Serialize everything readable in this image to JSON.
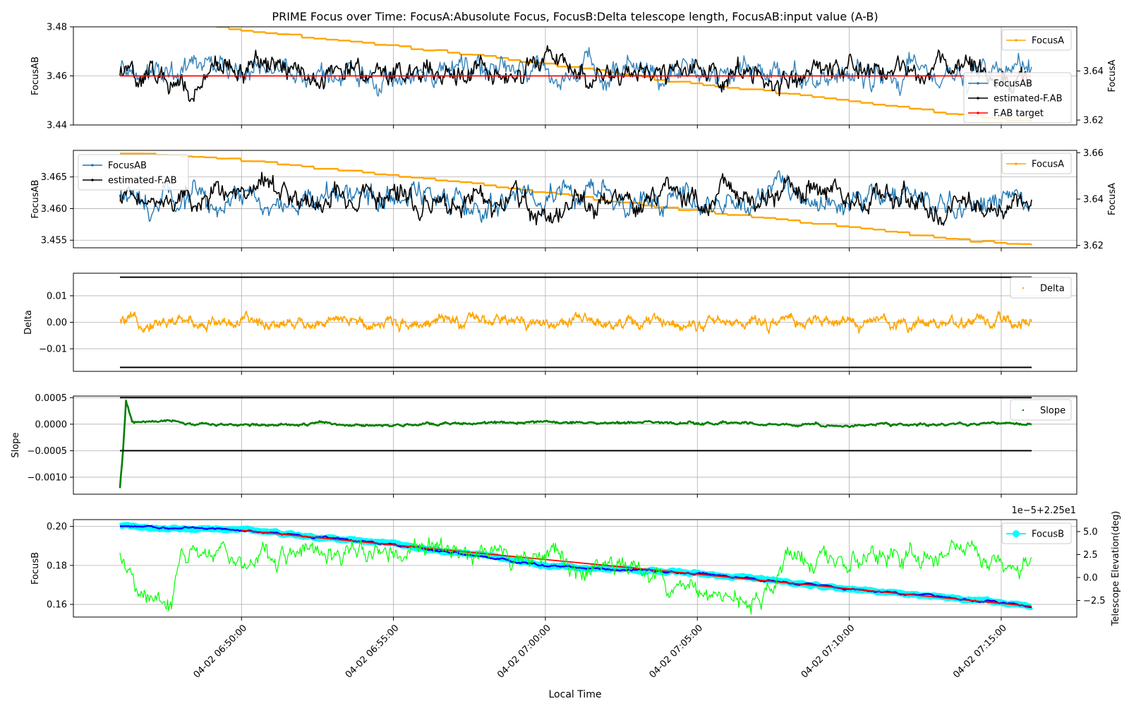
{
  "figure": {
    "title": "PRIME Focus over Time: FocusA:Abusolute Focus, FocusB:Delta telescope length, FocusAB:input value (A-B)",
    "xlabel": "Local Time",
    "x_ticks": [
      "04-02 06:50:00",
      "04-02 06:55:00",
      "04-02 07:00:00",
      "04-02 07:05:00",
      "04-02 07:10:00",
      "04-02 07:15:00"
    ]
  },
  "chart_data": [
    {
      "type": "line",
      "x_range": [
        "04-02 06:46:00",
        "04-02 07:16:00"
      ],
      "ylabel": "FocusAB",
      "ylim": [
        3.44,
        3.48
      ],
      "y_ticks": [
        "3.44",
        "3.46",
        "3.48"
      ],
      "y2label": "FocusA",
      "y2lim": [
        3.618,
        3.658
      ],
      "y2_ticks": [
        "3.62",
        "3.64"
      ],
      "grid": true,
      "legend_top_right": "FocusA",
      "legend_right": [
        "FocusAB",
        "estimated-F.AB",
        "F.AB target"
      ],
      "series": [
        {
          "name": "FocusA",
          "axis": "right",
          "color": "#ffa500",
          "x": [
            "06:46:00",
            "06:49:00",
            "06:52:00",
            "06:55:00",
            "06:58:00",
            "07:01:00",
            "07:04:00",
            "07:07:00",
            "07:10:00",
            "07:13:00",
            "07:16:00"
          ],
          "y": [
            3.66,
            3.658,
            3.654,
            3.65,
            3.646,
            3.641,
            3.636,
            3.632,
            3.628,
            3.623,
            3.619
          ]
        },
        {
          "name": "FocusAB",
          "axis": "left",
          "color": "#1f77b4",
          "x": [
            "06:46:00",
            "06:52:00",
            "06:58:00",
            "07:04:00",
            "07:10:00",
            "07:16:00"
          ],
          "y": [
            3.462,
            3.461,
            3.461,
            3.462,
            3.461,
            3.461
          ]
        },
        {
          "name": "estimated-F.AB",
          "axis": "left",
          "color": "#000000",
          "x": [
            "06:46:00",
            "06:52:00",
            "06:58:00",
            "07:04:00",
            "07:10:00",
            "07:16:00"
          ],
          "y": [
            3.462,
            3.461,
            3.461,
            3.462,
            3.461,
            3.461
          ]
        },
        {
          "name": "F.AB target",
          "axis": "left",
          "color": "#ff0000",
          "x": [
            "06:46:00",
            "07:16:00"
          ],
          "y": [
            3.46,
            3.46
          ]
        }
      ]
    },
    {
      "type": "line",
      "x_range": [
        "04-02 06:46:00",
        "04-02 07:16:00"
      ],
      "ylabel": "FocusAB",
      "ylim": [
        3.4538,
        3.4692
      ],
      "y_ticks": [
        "3.455",
        "3.460",
        "3.465"
      ],
      "y2label": "FocusA",
      "y2lim": [
        3.619,
        3.661
      ],
      "y2_ticks": [
        "3.62",
        "3.64",
        "3.66"
      ],
      "grid": true,
      "legend_top_right": "FocusA",
      "legend_top_left": [
        "FocusAB",
        "estimated-F.AB"
      ],
      "series": [
        {
          "name": "FocusA",
          "axis": "right",
          "color": "#ffa500",
          "x": [
            "06:46:00",
            "06:49:00",
            "06:52:00",
            "06:55:00",
            "06:58:00",
            "07:01:00",
            "07:04:00",
            "07:07:00",
            "07:10:00",
            "07:13:00",
            "07:16:00"
          ],
          "y": [
            3.66,
            3.658,
            3.654,
            3.65,
            3.646,
            3.641,
            3.636,
            3.632,
            3.628,
            3.623,
            3.62
          ]
        },
        {
          "name": "FocusAB",
          "axis": "left",
          "color": "#1f77b4",
          "x": [
            "06:46:00",
            "06:50:00",
            "06:54:00",
            "06:58:00",
            "07:02:00",
            "07:06:00",
            "07:10:00",
            "07:14:00",
            "07:16:00"
          ],
          "y": [
            3.4615,
            3.4612,
            3.4618,
            3.4614,
            3.4613,
            3.4616,
            3.4612,
            3.4615,
            3.461
          ]
        },
        {
          "name": "estimated-F.AB",
          "axis": "left",
          "color": "#000000",
          "x": [
            "06:46:00",
            "06:50:00",
            "06:54:00",
            "06:58:00",
            "07:02:00",
            "07:06:00",
            "07:10:00",
            "07:14:00",
            "07:16:00"
          ],
          "y": [
            3.4615,
            3.4612,
            3.4618,
            3.4614,
            3.4613,
            3.4616,
            3.4612,
            3.4615,
            3.461
          ]
        }
      ]
    },
    {
      "type": "scatter",
      "x_range": [
        "04-02 06:46:00",
        "04-02 07:16:00"
      ],
      "ylabel": "Delta",
      "ylim": [
        -0.0185,
        0.0185
      ],
      "y_ticks": [
        "0.01",
        "0.00",
        "−0.01"
      ],
      "grid": true,
      "legend_top_right": "Delta",
      "series": [
        {
          "name": "Delta",
          "color": "#ffa500",
          "x_span": [
            "06:46:00",
            "07:16:00"
          ],
          "y_center": 0.0,
          "y_amplitude": 0.003
        },
        {
          "name": "",
          "color": "#000000",
          "x": [
            "06:46:00",
            "07:16:00"
          ],
          "y": [
            0.017,
            0.017
          ]
        },
        {
          "name": "",
          "color": "#000000",
          "x": [
            "06:46:00",
            "07:16:00"
          ],
          "y": [
            -0.017,
            -0.017
          ]
        }
      ]
    },
    {
      "type": "scatter",
      "x_range": [
        "04-02 06:46:00",
        "04-02 07:16:00"
      ],
      "ylabel": "Slope",
      "ylim": [
        -0.00132,
        0.00053
      ],
      "y_ticks": [
        "0.0005",
        "0.0000",
        "−0.0005",
        "−0.0010"
      ],
      "grid": true,
      "legend_top_right": "Slope",
      "series": [
        {
          "name": "Slope",
          "color": "#008000",
          "x": [
            "06:46:00",
            "06:46:06",
            "06:46:12",
            "06:46:24",
            "06:50:00",
            "06:55:00",
            "07:00:00",
            "07:05:00",
            "07:10:00",
            "07:16:00"
          ],
          "y": [
            -0.0012,
            -0.0005,
            0.00045,
            5e-05,
            0.0,
            -2e-05,
            3e-05,
            2e-05,
            -1e-05,
            0.0
          ]
        },
        {
          "name": "",
          "color": "#000000",
          "x": [
            "06:46:00",
            "07:16:00"
          ],
          "y": [
            0.0005,
            0.0005
          ]
        },
        {
          "name": "",
          "color": "#000000",
          "x": [
            "06:46:00",
            "07:16:00"
          ],
          "y": [
            -0.0005,
            -0.0005
          ]
        }
      ]
    },
    {
      "type": "line",
      "x_range": [
        "04-02 06:46:00",
        "04-02 07:16:00"
      ],
      "ylabel": "FocusB",
      "ylim": [
        0.1535,
        0.2035
      ],
      "y_ticks": [
        "0.20",
        "0.18",
        "0.16"
      ],
      "y2label": "Telescope Elevation(deg)",
      "y2_offset_text": "1e−5+2.25e1",
      "y2lim": [
        -4.3,
        6.3
      ],
      "y2_ticks": [
        "5.0",
        "2.5",
        "0.0",
        "−2.5"
      ],
      "grid": true,
      "legend_top_right": "FocusB",
      "series": [
        {
          "name": "FocusB",
          "axis": "left",
          "color": "#00ffff",
          "x": [
            "06:46:00",
            "06:50:00",
            "06:55:00",
            "07:00:00",
            "07:05:00",
            "07:10:00",
            "07:15:00",
            "07:16:00"
          ],
          "y": [
            0.2,
            0.198,
            0.191,
            0.18,
            0.176,
            0.168,
            0.161,
            0.159
          ]
        },
        {
          "name": "",
          "axis": "left",
          "color": "#0000ff",
          "x": [
            "06:46:00",
            "06:50:00",
            "06:55:00",
            "07:00:00",
            "07:05:00",
            "07:10:00",
            "07:15:00",
            "07:16:00"
          ],
          "y": [
            0.2,
            0.198,
            0.191,
            0.18,
            0.176,
            0.168,
            0.161,
            0.159
          ]
        },
        {
          "name": "",
          "axis": "left",
          "color": "#ff0000",
          "x": [
            "06:50:00",
            "07:16:00"
          ],
          "y": [
            0.198,
            0.159
          ]
        },
        {
          "name": "",
          "axis": "right",
          "color": "#00ff00",
          "x": [
            "06:46:00",
            "06:47:00",
            "06:47:45",
            "06:48:00",
            "06:55:00",
            "07:00:00",
            "07:07:30",
            "07:08:00",
            "07:08:30",
            "07:16:00"
          ],
          "y": [
            2.2,
            -3.0,
            -3.0,
            2.5,
            2.5,
            2.0,
            -3.0,
            2.3,
            2.5,
            2.3
          ]
        }
      ]
    }
  ]
}
